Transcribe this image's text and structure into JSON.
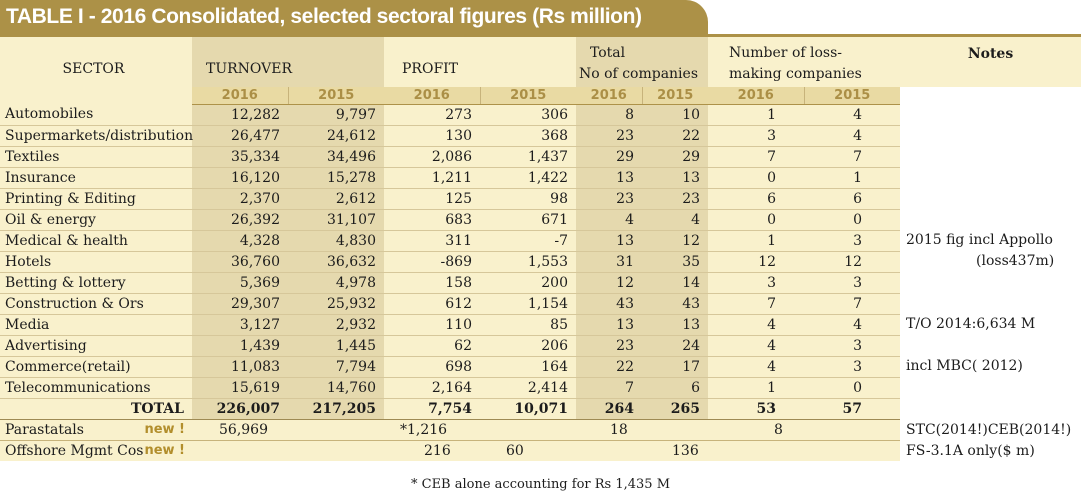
{
  "title": "TABLE I - 2016 Consolidated, selected sectoral figures (Rs million)",
  "headers": {
    "sector": "SECTOR",
    "turnover": "TURNOVER",
    "profit": "PROFIT",
    "total_line1": "Total",
    "total_line2": "No of companies",
    "loss_line1": "Number  of loss-",
    "loss_line2": "making companies",
    "notes": "Notes",
    "years": [
      "2016",
      "2015",
      "2016",
      "2015",
      "2016",
      "2015",
      "2016",
      "2015"
    ]
  },
  "rows": [
    {
      "sector": "Automobiles",
      "t16": "12,282",
      "t15": "9,797",
      "p16": "273",
      "p15": "306",
      "n16": "8",
      "n15": "10",
      "l16": "1",
      "l15": "4"
    },
    {
      "sector": "Supermarkets/distribution",
      "t16": "26,477",
      "t15": "24,612",
      "p16": "130",
      "p15": "368",
      "n16": "23",
      "n15": "22",
      "l16": "3",
      "l15": "4"
    },
    {
      "sector": "Textiles",
      "t16": "35,334",
      "t15": "34,496",
      "p16": "2,086",
      "p15": "1,437",
      "n16": "29",
      "n15": "29",
      "l16": "7",
      "l15": "7"
    },
    {
      "sector": "Insurance",
      "t16": "16,120",
      "t15": "15,278",
      "p16": "1,211",
      "p15": "1,422",
      "n16": "13",
      "n15": "13",
      "l16": "0",
      "l15": "1"
    },
    {
      "sector": "Printing & Editing",
      "t16": "2,370",
      "t15": "2,612",
      "p16": "125",
      "p15": "98",
      "n16": "23",
      "n15": "23",
      "l16": "6",
      "l15": "6"
    },
    {
      "sector": "Oil & energy",
      "t16": "26,392",
      "t15": "31,107",
      "p16": "683",
      "p15": "671",
      "n16": "4",
      "n15": "4",
      "l16": "0",
      "l15": "0"
    },
    {
      "sector": "Medical & health",
      "t16": "4,328",
      "t15": "4,830",
      "p16": "311",
      "p15": "-7",
      "n16": "13",
      "n15": "12",
      "l16": "1",
      "l15": "3"
    },
    {
      "sector": "Hotels",
      "t16": "36,760",
      "t15": "36,632",
      "p16": "-869",
      "p15": "1,553",
      "n16": "31",
      "n15": "35",
      "l16": "12",
      "l15": "12"
    },
    {
      "sector": "Betting & lottery",
      "t16": "5,369",
      "t15": "4,978",
      "p16": "158",
      "p15": "200",
      "n16": "12",
      "n15": "14",
      "l16": "3",
      "l15": "3"
    },
    {
      "sector": "Construction & Ors",
      "t16": "29,307",
      "t15": "25,932",
      "p16": "612",
      "p15": "1,154",
      "n16": "43",
      "n15": "43",
      "l16": "7",
      "l15": "7"
    },
    {
      "sector": "Media",
      "t16": "3,127",
      "t15": "2,932",
      "p16": "110",
      "p15": "85",
      "n16": "13",
      "n15": "13",
      "l16": "4",
      "l15": "4"
    },
    {
      "sector": "Advertising",
      "t16": "1,439",
      "t15": "1,445",
      "p16": "62",
      "p15": "206",
      "n16": "23",
      "n15": "24",
      "l16": "4",
      "l15": "3"
    },
    {
      "sector": "Commerce(retail)",
      "t16": "11,083",
      "t15": "7,794",
      "p16": "698",
      "p15": "164",
      "n16": "22",
      "n15": "17",
      "l16": "4",
      "l15": "3"
    },
    {
      "sector": "Telecommunications",
      "t16": "15,619",
      "t15": "14,760",
      "p16": "2,164",
      "p15": "2,414",
      "n16": "7",
      "n15": "6",
      "l16": "1",
      "l15": "0"
    }
  ],
  "total": {
    "label": "TOTAL",
    "t16": "226,007",
    "t15": "217,205",
    "p16": "7,754",
    "p15": "10,071",
    "n16": "264",
    "n15": "265",
    "l16": "53",
    "l15": "57"
  },
  "notes_col": {
    "hotels_note1": "2015 fig incl Appollo",
    "hotels_note2": "(loss437m)",
    "media_note": "T/O 2014:6,634 M",
    "commerce_note": "incl MBC( 2012)"
  },
  "parastatals": {
    "label": "Parastatals",
    "new": "new !",
    "t16": "56,969",
    "p16": "*1,216",
    "n16": "18",
    "l16": "8",
    "note": "STC(2014!)CEB(2014!)"
  },
  "offshore": {
    "label": "Offshore Mgmt Cos",
    "new": "new !",
    "p16": "216",
    "p15": "60",
    "n15": "136",
    "note": "FS-3.1A  only($ m)"
  },
  "footnote": "* CEB alone accounting for Rs 1,435 M"
}
